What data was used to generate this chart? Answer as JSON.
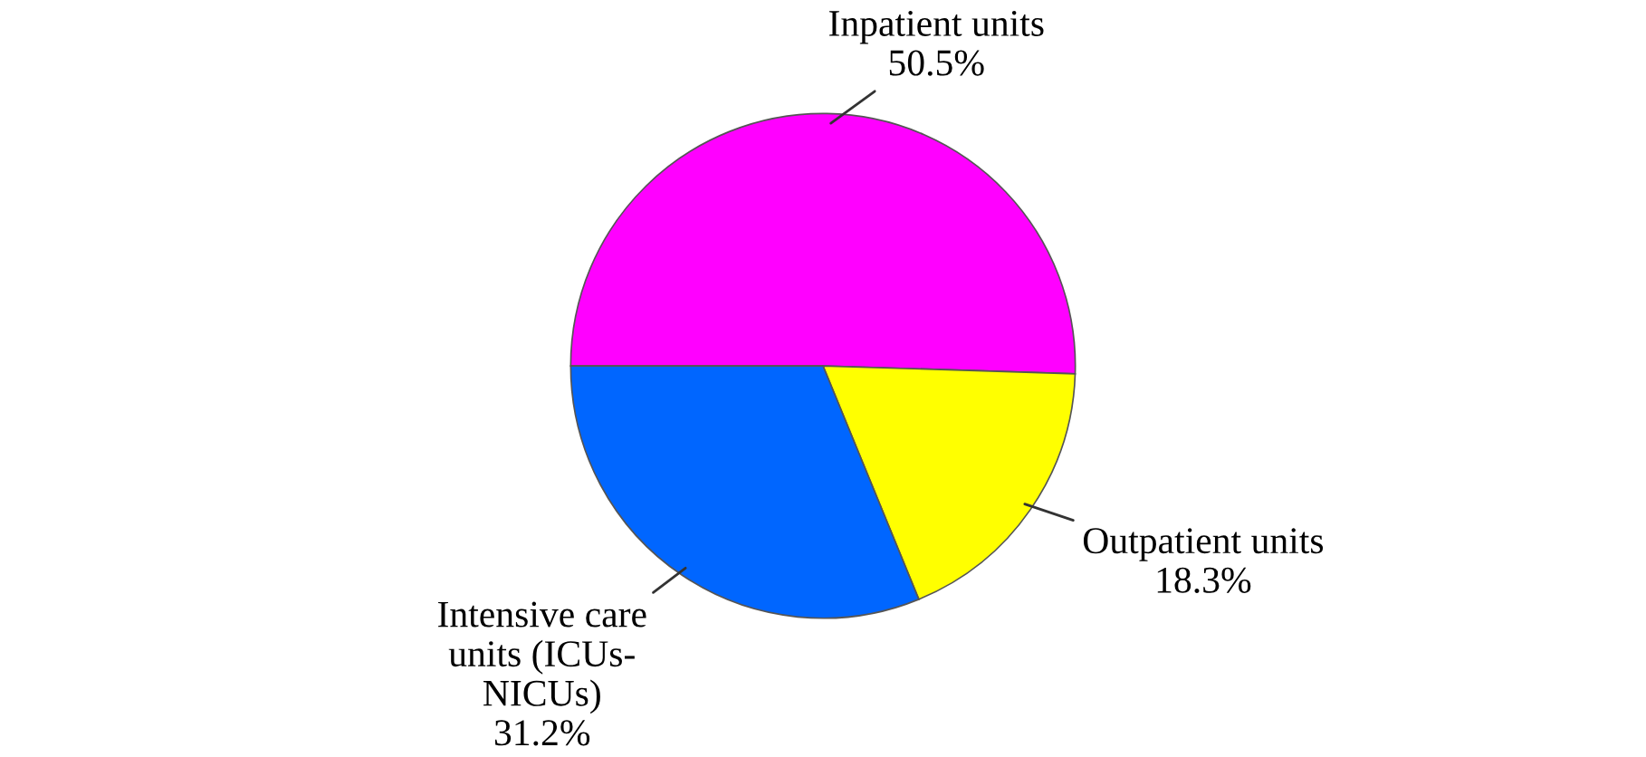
{
  "chart_data": {
    "type": "pie",
    "categories": [
      "Inpatient units",
      "Outpatient units",
      "Intensive care\nunits (ICUs-\nNICUs)"
    ],
    "values": [
      50.5,
      18.3,
      31.2
    ],
    "colors": [
      "#ff00ff",
      "#ffff00",
      "#0066ff"
    ],
    "value_labels": [
      "50.5%",
      "18.3%",
      "31.2%"
    ]
  }
}
